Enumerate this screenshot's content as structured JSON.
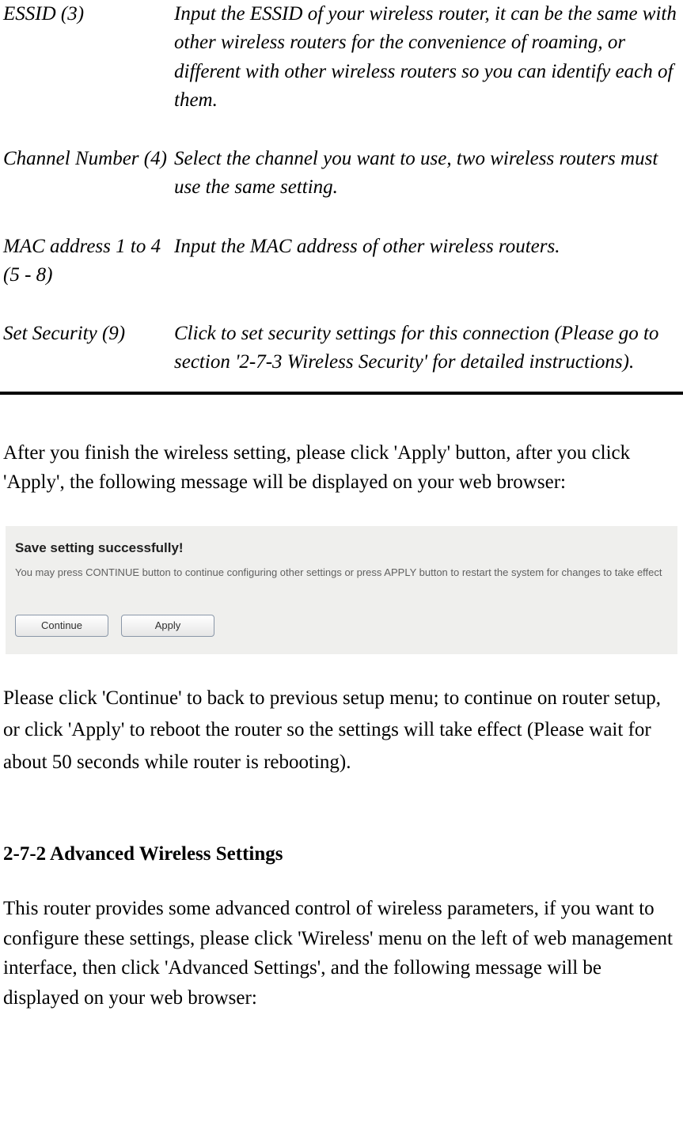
{
  "definitions": [
    {
      "term": "ESSID (3)",
      "desc": "Input the ESSID of your wireless router, it can be the same with other wireless routers for the convenience of roaming, or different with other wireless routers so you can identify each of them."
    },
    {
      "term": "Channel Number (4)",
      "desc": "Select the channel you want to use, two wireless routers must use the same setting."
    },
    {
      "term": "MAC address 1 to 4 (5 - 8)",
      "desc": "Input the MAC address of other wireless routers."
    },
    {
      "term": "Set Security (9)",
      "desc": "Click to set security settings for this connection (Please go to section '2-7-3 Wireless Security' for detailed instructions)."
    }
  ],
  "para1": "After you finish the wireless setting, please click 'Apply' button, after you click 'Apply', the following message will be displayed on your web browser:",
  "dialog": {
    "title": "Save setting successfully!",
    "text": "You may press CONTINUE button to continue configuring other settings or press APPLY button to restart the system for changes to take effect",
    "continue_label": "Continue",
    "apply_label": "Apply"
  },
  "para2": "Please click 'Continue' to back to previous setup menu; to continue on router setup, or click 'Apply' to reboot the router so the settings will take effect (Please wait for about 50 seconds while router is rebooting).",
  "section_heading": "2-7-2 Advanced Wireless Settings",
  "para3": "This router provides some advanced control of wireless parameters, if you want to configure these settings, please click 'Wireless' menu on the left of web management interface, then click 'Advanced Settings', and the following message will be displayed on your web browser:"
}
